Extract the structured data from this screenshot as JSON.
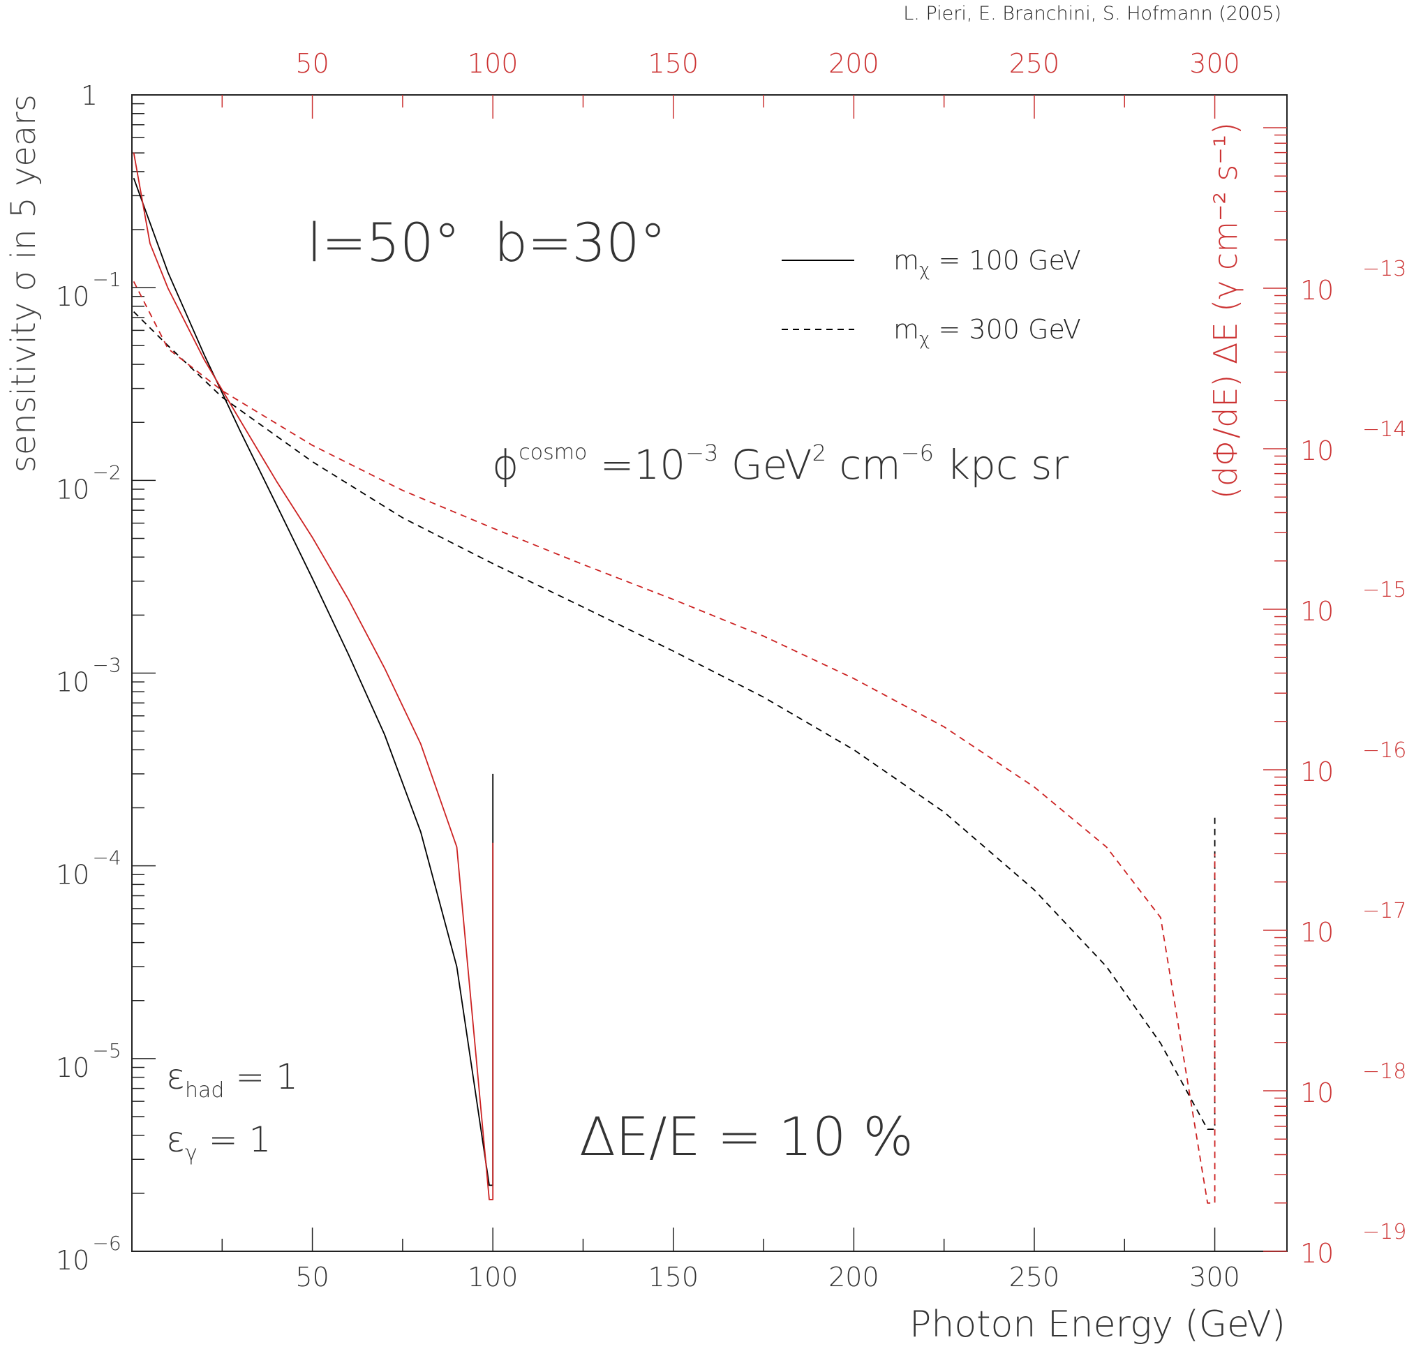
{
  "credit": "L. Pieri, E. Branchini, S. Hofmann (2005)",
  "chart_data": {
    "type": "line",
    "xlabel": "Photon Energy (GeV)",
    "ylabel": "sensitivity σ in 5 years",
    "ylabel_right": "(dΦ/dE) ΔE  (γ cm⁻² s⁻¹)",
    "xlim": [
      0,
      320
    ],
    "ylim": [
      1e-06,
      1
    ],
    "yscale": "log",
    "y2lim": [
      1e-19,
      1.6e-12
    ],
    "y2scale": "log",
    "xticks_bottom": [
      "50",
      "100",
      "150",
      "200",
      "250",
      "300"
    ],
    "xticks_top": [
      "50",
      "100",
      "150",
      "200",
      "250",
      "300"
    ],
    "yticks_left": [
      {
        "base": "1",
        "exp": ""
      },
      {
        "base": "10",
        "exp": "−1"
      },
      {
        "base": "10",
        "exp": "−2"
      },
      {
        "base": "10",
        "exp": "−3"
      },
      {
        "base": "10",
        "exp": "−4"
      },
      {
        "base": "10",
        "exp": "−5"
      },
      {
        "base": "10",
        "exp": "−6"
      }
    ],
    "yticks_right": [
      {
        "base": "10",
        "exp": "−13"
      },
      {
        "base": "10",
        "exp": "−14"
      },
      {
        "base": "10",
        "exp": "−15"
      },
      {
        "base": "10",
        "exp": "−16"
      },
      {
        "base": "10",
        "exp": "−17"
      },
      {
        "base": "10",
        "exp": "−18"
      },
      {
        "base": "10",
        "exp": "−19"
      }
    ],
    "colors": {
      "sensitivity": "#000000",
      "flux": "#cc2222",
      "right_axis": "#cc3333",
      "axes": "#222222"
    },
    "series": [
      {
        "name": "m_χ = 100 GeV",
        "axis": "left",
        "style": "solid",
        "color": "#000000",
        "x": [
          0.5,
          10,
          20,
          30,
          40,
          50,
          60,
          70,
          80,
          90,
          99,
          100,
          100
        ],
        "y": [
          0.37,
          0.12,
          0.045,
          0.018,
          0.0075,
          0.0031,
          0.00125,
          0.00048,
          0.00015,
          3e-05,
          2.2e-06,
          2.2e-06,
          0.0003
        ]
      },
      {
        "name": "m_χ = 300 GeV",
        "axis": "left",
        "style": "dashed",
        "color": "#000000",
        "x": [
          0.5,
          10,
          25,
          50,
          75,
          100,
          125,
          150,
          175,
          200,
          225,
          250,
          270,
          285,
          298,
          300,
          300
        ],
        "y": [
          0.075,
          0.05,
          0.027,
          0.0125,
          0.0064,
          0.0037,
          0.0022,
          0.0013,
          0.00075,
          0.0004,
          0.00019,
          7.5e-05,
          3e-05,
          1.2e-05,
          4.3e-06,
          4.3e-06,
          0.00018
        ]
      },
      {
        "name": "flux m_χ = 100 GeV",
        "axis": "right",
        "style": "solid",
        "color": "#cc2222",
        "x": [
          0.5,
          5,
          10,
          20,
          30,
          40,
          50,
          60,
          70,
          80,
          90,
          99,
          100,
          100
        ],
        "y": [
          7e-13,
          1.9e-13,
          1e-13,
          3.6e-14,
          1.5e-14,
          6.3e-15,
          2.8e-15,
          1.15e-15,
          4.3e-16,
          1.45e-16,
          3.3e-17,
          2.1e-19,
          2.1e-19,
          3.5e-17
        ]
      },
      {
        "name": "flux m_χ = 300 GeV",
        "axis": "right",
        "style": "dashed",
        "color": "#cc2222",
        "x": [
          0.5,
          10,
          25,
          50,
          75,
          100,
          125,
          150,
          175,
          200,
          225,
          250,
          270,
          285,
          298,
          300,
          300
        ],
        "y": [
          1.1e-13,
          4.2e-14,
          2.3e-14,
          1.05e-14,
          5.5e-15,
          3.2e-15,
          1.9e-15,
          1.15e-15,
          6.8e-16,
          3.7e-16,
          1.85e-16,
          7.8e-17,
          3.3e-17,
          1.2e-17,
          2e-19,
          2e-19,
          3e-17
        ]
      }
    ],
    "legend": {
      "placement": "top-right",
      "entries": [
        {
          "text": "m",
          "sub": "χ",
          "value": " = 100 GeV",
          "style": "solid"
        },
        {
          "text": "m",
          "sub": "χ",
          "value": " = 300 GeV",
          "style": "dashed"
        }
      ]
    },
    "annotations": {
      "coords": "l=50°  b=30°",
      "phi_symbol": "ϕ",
      "phi_sup": "cosmo",
      "phi_text1": " =10",
      "phi_exp1": "−3",
      "phi_text2": " GeV",
      "phi_exp2": "2",
      "phi_text3": " cm",
      "phi_exp3": "−6",
      "phi_text4": " kpc sr",
      "resolution": "ΔE/E = 10 %",
      "eps_symbol": "ε",
      "eps_had_sub": "had",
      "eps_had_val": " = 1",
      "eps_gamma_sub": "γ",
      "eps_gamma_val": " = 1"
    }
  }
}
